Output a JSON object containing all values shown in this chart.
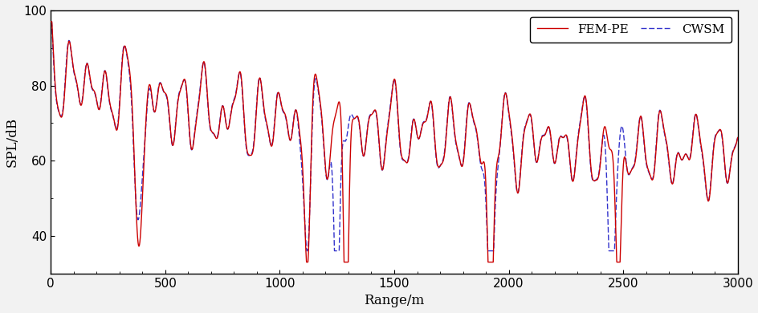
{
  "title": "",
  "xlabel": "Range/m",
  "ylabel": "SPL/dB",
  "xlim": [
    0,
    3000
  ],
  "ylim": [
    30,
    100
  ],
  "yticks": [
    40,
    60,
    80,
    100
  ],
  "xticks": [
    0,
    500,
    1000,
    1500,
    2000,
    2500,
    3000
  ],
  "fem_pe_color": "#cc0000",
  "cwsm_color": "#3333cc",
  "fem_pe_linewidth": 1.0,
  "cwsm_linewidth": 1.0,
  "cwsm_dashes": [
    5,
    2
  ],
  "legend_fontsize": 11,
  "axis_fontsize": 12,
  "tick_fontsize": 11,
  "background_color": "#ffffff",
  "fig_color": "#f2f2f2"
}
